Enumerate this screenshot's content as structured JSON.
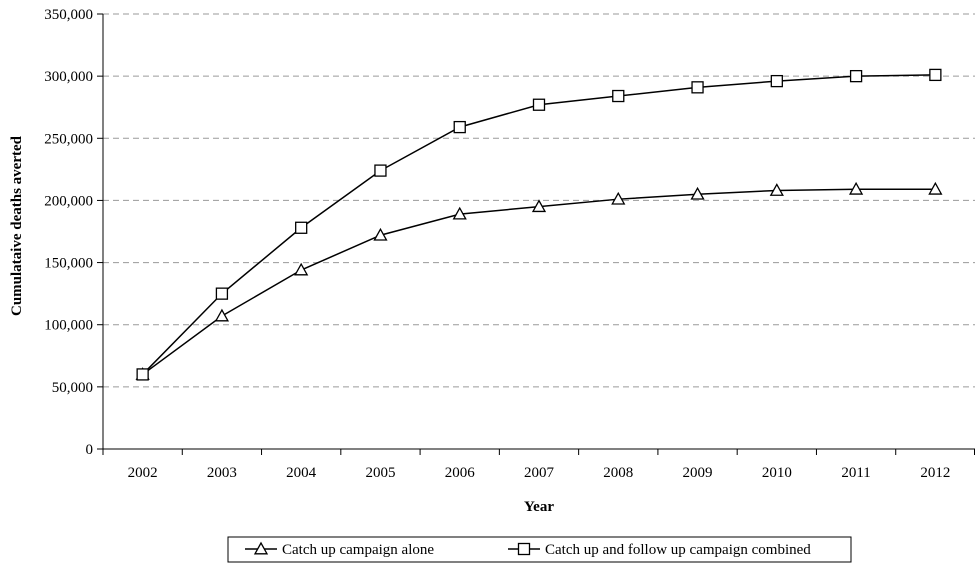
{
  "chart_data": {
    "type": "line",
    "title": "",
    "xlabel": "Year",
    "ylabel": "Cumulataive deaths averted",
    "categories": [
      "2002",
      "2003",
      "2004",
      "2005",
      "2006",
      "2007",
      "2008",
      "2009",
      "2010",
      "2011",
      "2012"
    ],
    "ylim": [
      0,
      350000
    ],
    "yticks": [
      0,
      50000,
      100000,
      150000,
      200000,
      250000,
      300000,
      350000
    ],
    "ytick_labels": [
      "0",
      "50,000",
      "100,000",
      "150,000",
      "200,000",
      "250,000",
      "300,000",
      "350,000"
    ],
    "grid": "horizontal dashed",
    "legend_position": "bottom",
    "series": [
      {
        "name": "Catch up campaign alone",
        "marker": "triangle",
        "color": "#000000",
        "values": [
          60000,
          107000,
          144000,
          172000,
          189000,
          195000,
          201000,
          205000,
          208000,
          209000,
          209000
        ]
      },
      {
        "name": "Catch up and follow up campaign combined",
        "marker": "square",
        "color": "#000000",
        "values": [
          60000,
          125000,
          178000,
          224000,
          259000,
          277000,
          284000,
          291000,
          296000,
          300000,
          301000
        ]
      }
    ]
  }
}
